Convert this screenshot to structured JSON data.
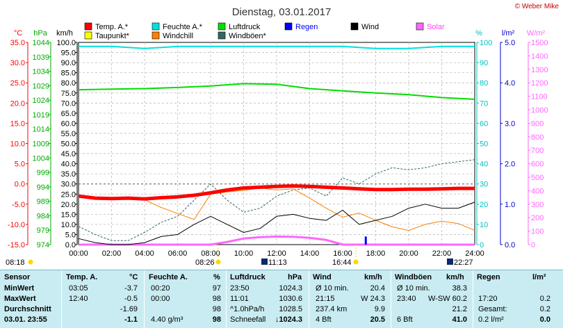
{
  "title": "Dienstag, 03.01.2017",
  "copyright": "© Weber Mike",
  "legend": [
    {
      "label": "Temp. A.*",
      "color": "#ff0000"
    },
    {
      "label": "Taupunkt*",
      "color": "#ffff00"
    },
    {
      "label": "Feuchte A.*",
      "color": "#00e0e0"
    },
    {
      "label": "Windchill",
      "color": "#ff8000"
    },
    {
      "label": "Luftdruck",
      "color": "#00dd00"
    },
    {
      "label": "Windböen*",
      "color": "#336666"
    },
    {
      "label": "Regen",
      "color": "#0000ff"
    },
    {
      "label": "Wind",
      "color": "#000000"
    },
    {
      "label": "Solar",
      "color": "#ff66ff"
    }
  ],
  "axis_units": {
    "temp": "°C",
    "hpa": "hPa",
    "kmh": "km/h",
    "pct": "%",
    "rain": "l/m²",
    "solar": "W/m²"
  },
  "chart_data": {
    "type": "line",
    "x_ticks": [
      "00:00",
      "02:00",
      "04:00",
      "06:00",
      "08:00",
      "10:00",
      "12:00",
      "14:00",
      "16:00",
      "18:00",
      "20:00",
      "22:00",
      "24:00"
    ],
    "axes": {
      "temp": {
        "min": -15,
        "max": 35,
        "ticks": [
          "35.0",
          "30.0",
          "25.0",
          "20.0",
          "15.0",
          "10.0",
          "5.0",
          "0.0",
          "-5.0",
          "-10.0",
          "-15.0"
        ]
      },
      "hpa": {
        "min": 974,
        "max": 1044,
        "ticks": [
          "1044",
          "1039",
          "1034",
          "1029",
          "1024",
          "1019",
          "1014",
          "1009",
          "1004",
          "999",
          "994",
          "989",
          "984",
          "979",
          "974"
        ]
      },
      "kmh": {
        "min": 0,
        "max": 100,
        "ticks": [
          "100.0",
          "95.0",
          "90.0",
          "85.0",
          "80.0",
          "75.0",
          "70.0",
          "65.0",
          "60.0",
          "55.0",
          "50.0",
          "45.0",
          "40.0",
          "35.0",
          "30.0",
          "25.0",
          "20.0",
          "15.0",
          "10.0",
          "5.0",
          "0.0"
        ]
      },
      "pct": {
        "min": 0,
        "max": 100,
        "ticks": [
          "100",
          "90",
          "80",
          "70",
          "60",
          "50",
          "40",
          "30",
          "20",
          "10",
          "0"
        ]
      },
      "rain": {
        "min": 0,
        "max": 5,
        "ticks": [
          "5.0",
          "4.0",
          "3.0",
          "2.0",
          "1.0",
          "0.0"
        ]
      },
      "solar": {
        "min": 0,
        "max": 1500,
        "ticks": [
          "1500",
          "1400",
          "1300",
          "1200",
          "1100",
          "1000",
          "900",
          "800",
          "700",
          "600",
          "500",
          "400",
          "300",
          "200",
          "100",
          "0"
        ]
      }
    },
    "series": [
      {
        "name": "Feuchte A.*",
        "axis": "pct",
        "x": [
          0,
          2,
          4,
          6,
          8,
          10,
          12,
          14,
          16,
          18,
          20,
          22,
          24
        ],
        "y": [
          98,
          98,
          97,
          98,
          98,
          98,
          98,
          98,
          98,
          97,
          97,
          98,
          98
        ]
      },
      {
        "name": "Luftdruck",
        "axis": "hpa",
        "x": [
          0,
          2,
          4,
          6,
          8,
          10,
          12,
          14,
          16,
          18,
          20,
          22,
          24
        ],
        "y": [
          1027.6,
          1027.8,
          1028.0,
          1028.4,
          1028.9,
          1029.7,
          1029.5,
          1028.0,
          1027.2,
          1026.5,
          1025.9,
          1024.9,
          1024.3
        ]
      },
      {
        "name": "Temp. A.*",
        "axis": "temp",
        "x": [
          0,
          1,
          2,
          3,
          4,
          5,
          6,
          7,
          8,
          9,
          10,
          11,
          12,
          13,
          14,
          15,
          16,
          17,
          18,
          19,
          20,
          21,
          22,
          23,
          24
        ],
        "y": [
          -3.0,
          -3.5,
          -3.6,
          -3.5,
          -3.7,
          -3.4,
          -3.2,
          -2.8,
          -2.2,
          -1.5,
          -1.0,
          -0.8,
          -0.6,
          -0.5,
          -0.6,
          -0.8,
          -1.0,
          -1.2,
          -1.4,
          -1.4,
          -1.3,
          -1.3,
          -1.2,
          -1.1,
          -1.1
        ]
      },
      {
        "name": "Windchill",
        "axis": "temp",
        "x": [
          0,
          1,
          2,
          3,
          4,
          5,
          6,
          7,
          8,
          9,
          10,
          11,
          12,
          13,
          14,
          15,
          16,
          17,
          18,
          19,
          20,
          21,
          22,
          23,
          24
        ],
        "y": [
          -3.2,
          -3.6,
          -3.7,
          -3.6,
          -3.9,
          -5.8,
          -7.3,
          -8.8,
          -2.5,
          -2.0,
          -1.6,
          -1.0,
          -1.5,
          -1.2,
          -3.5,
          -6.0,
          -8.2,
          -7.2,
          -9.0,
          -10.6,
          -11.5,
          -10.0,
          -9.2,
          -9.8,
          -11.5
        ]
      },
      {
        "name": "Wind",
        "axis": "kmh",
        "x": [
          0,
          1,
          2,
          3,
          4,
          5,
          6,
          7,
          8,
          9,
          10,
          11,
          12,
          13,
          14,
          15,
          16,
          17,
          18,
          19,
          20,
          21,
          22,
          23,
          24
        ],
        "y": [
          3,
          1,
          0,
          0,
          1,
          4,
          5,
          10,
          14,
          10,
          6,
          8,
          14,
          15,
          13,
          12,
          17,
          10,
          12,
          14,
          18,
          20,
          18,
          18,
          21
        ]
      },
      {
        "name": "Windböen*",
        "axis": "kmh",
        "x": [
          0,
          1,
          2,
          3,
          4,
          5,
          6,
          7,
          8,
          9,
          10,
          11,
          12,
          13,
          14,
          15,
          16,
          17,
          18,
          19,
          20,
          21,
          22,
          23,
          24
        ],
        "y": [
          9,
          5,
          2,
          2,
          6,
          11,
          14,
          22,
          30,
          22,
          16,
          18,
          24,
          27,
          28,
          24,
          33,
          30,
          35,
          38,
          37,
          38,
          40,
          41,
          42
        ]
      },
      {
        "name": "Solar",
        "axis": "solar",
        "x": [
          0,
          8,
          9,
          10,
          11,
          12,
          13,
          14,
          15,
          16,
          17,
          24
        ],
        "y": [
          0,
          0,
          20,
          45,
          55,
          60,
          58,
          50,
          35,
          0,
          0,
          0
        ]
      }
    ],
    "rain_bars": [
      {
        "x": 17.4,
        "y": 0.2
      }
    ],
    "grid": true
  },
  "events": {
    "sunrise": "08:18",
    "sunset_label": "08:26",
    "moon1": "11:13",
    "sun2": "16:44",
    "moon2": "22:27"
  },
  "table": {
    "headers": {
      "sensor": "Sensor",
      "temp": "Temp. A.",
      "temp_u": "°C",
      "hum": "Feuchte A.",
      "hum_u": "%",
      "press": "Luftdruck",
      "press_u": "hPa",
      "wind": "Wind",
      "wind_u": "km/h",
      "gust": "Windböen",
      "gust_u": "km/h",
      "rain": "Regen",
      "rain_u": "l/m²"
    },
    "rows": [
      {
        "label": "MinWert",
        "t_time": "03:05",
        "t_val": "-3.7",
        "h_time": "00:20",
        "h_val": "97",
        "p_time": "23:50",
        "p_val": "1024.3",
        "w_label": "Ø 10 min.",
        "w_val": "20.4",
        "g_label": "Ø 10 min.",
        "g_val": "38.3",
        "r_label": "",
        "r_val": ""
      },
      {
        "label": "MaxWert",
        "t_time": "12:40",
        "t_val": "-0.5",
        "h_time": "00:00",
        "h_val": "98",
        "p_time": "11:01",
        "p_val": "1030.6",
        "w_label": "21:15",
        "w_val": "W 24.3",
        "g_label": "23:40",
        "g_val": "W-SW 60.2",
        "r_label": "17:20",
        "r_val": "0.2"
      },
      {
        "label": "Durchschnitt",
        "t_time": "",
        "t_val": "-1.69",
        "h_time": "",
        "h_val": "98",
        "p_time": "^1.0hPa/h",
        "p_val": "1028.5",
        "w_label": "237.4 km",
        "w_val": "9.9",
        "g_label": "",
        "g_val": "21.2",
        "r_label": "Gesamt:",
        "r_val": "0.2"
      },
      {
        "label": "03.01. 23:55",
        "t_time": "",
        "t_val": "-1.1",
        "h_time": "4.40 g/m³",
        "h_val": "98",
        "p_time": "Schneefall",
        "p_val": "↓1024.3",
        "w_label": "4 Bft",
        "w_val": "20.5",
        "g_label": "6 Bft",
        "g_val": "41.0",
        "r_label": "0.2 l/m²",
        "r_val": "0.0"
      }
    ]
  }
}
